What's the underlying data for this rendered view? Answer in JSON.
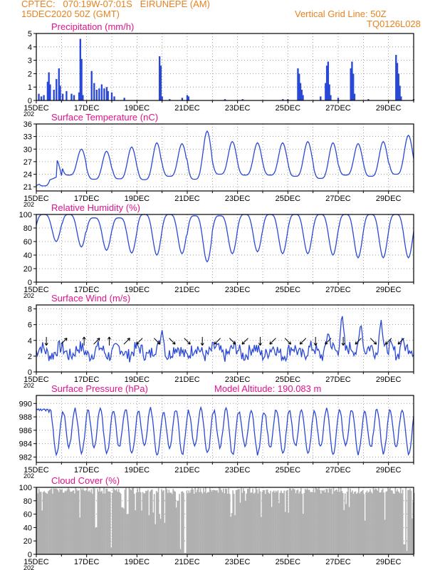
{
  "header": {
    "line1_left": "CPTEC:   070:19W-07:01S   EIRUNEPE (AM)",
    "line2_left": "15DEC2020 50Z (GMT)",
    "line1_right": "Vertical Grid Line: 50Z",
    "line2_right": "TQ0126L028",
    "text_color": "#e8821e"
  },
  "colors": {
    "title": "#e0138c",
    "series": "#2a48d6",
    "cloud": "#b0b0b0",
    "grid": "#888888",
    "frame": "#000000"
  },
  "x_axis": {
    "range_days": [
      0,
      15
    ],
    "tick_days": [
      0,
      2,
      4,
      6,
      8,
      10,
      12,
      14
    ],
    "tick_labels": [
      "15DEC",
      "17DEC",
      "19DEC",
      "21DEC",
      "23DEC",
      "25DEC",
      "27DEC",
      "29DEC"
    ],
    "year_stub": "202"
  },
  "chart_data": [
    {
      "type": "bar",
      "title": "Precipitation  (mm/h)",
      "ylim": [
        0,
        5
      ],
      "yticks": [
        0,
        1,
        2,
        3,
        4,
        5
      ],
      "events": [
        {
          "t": 0.1,
          "v": 0.5
        },
        {
          "t": 0.2,
          "v": 0.3
        },
        {
          "t": 0.3,
          "v": 0.4
        },
        {
          "t": 0.45,
          "v": 1.4
        },
        {
          "t": 0.5,
          "v": 2.1
        },
        {
          "t": 0.55,
          "v": 1.2
        },
        {
          "t": 0.7,
          "v": 0.8
        },
        {
          "t": 0.8,
          "v": 1.6
        },
        {
          "t": 0.9,
          "v": 2.4
        },
        {
          "t": 0.95,
          "v": 1.1
        },
        {
          "t": 1.05,
          "v": 0.5
        },
        {
          "t": 1.2,
          "v": 0.7
        },
        {
          "t": 1.4,
          "v": 0.5
        },
        {
          "t": 1.5,
          "v": 0.4
        },
        {
          "t": 1.7,
          "v": 0.6
        },
        {
          "t": 1.75,
          "v": 4.6
        },
        {
          "t": 1.8,
          "v": 3.1
        },
        {
          "t": 1.85,
          "v": 0.4
        },
        {
          "t": 2.2,
          "v": 2.2
        },
        {
          "t": 2.3,
          "v": 1.3
        },
        {
          "t": 2.4,
          "v": 0.8
        },
        {
          "t": 2.5,
          "v": 0.9
        },
        {
          "t": 2.6,
          "v": 1.2
        },
        {
          "t": 2.7,
          "v": 0.9
        },
        {
          "t": 2.8,
          "v": 1.0
        },
        {
          "t": 2.85,
          "v": 0.7
        },
        {
          "t": 3.0,
          "v": 0.6
        },
        {
          "t": 3.1,
          "v": 0.3
        },
        {
          "t": 3.5,
          "v": 0.2
        },
        {
          "t": 4.9,
          "v": 3.3
        },
        {
          "t": 4.95,
          "v": 2.6
        },
        {
          "t": 5.0,
          "v": 0.3
        },
        {
          "t": 5.3,
          "v": 0.1
        },
        {
          "t": 5.8,
          "v": 0.2
        },
        {
          "t": 6.0,
          "v": 0.4
        },
        {
          "t": 6.05,
          "v": 0.3
        },
        {
          "t": 7.5,
          "v": 0.1
        },
        {
          "t": 8.2,
          "v": 0.1
        },
        {
          "t": 9.8,
          "v": 0.1
        },
        {
          "t": 10.0,
          "v": 0.1
        },
        {
          "t": 10.4,
          "v": 2.4
        },
        {
          "t": 10.45,
          "v": 2.0
        },
        {
          "t": 10.5,
          "v": 1.3
        },
        {
          "t": 10.55,
          "v": 0.8
        },
        {
          "t": 10.6,
          "v": 0.4
        },
        {
          "t": 11.3,
          "v": 0.3
        },
        {
          "t": 11.5,
          "v": 1.3
        },
        {
          "t": 11.55,
          "v": 2.6
        },
        {
          "t": 11.6,
          "v": 2.9
        },
        {
          "t": 11.65,
          "v": 1.2
        },
        {
          "t": 11.7,
          "v": 0.4
        },
        {
          "t": 12.0,
          "v": 0.2
        },
        {
          "t": 12.5,
          "v": 2.4
        },
        {
          "t": 12.55,
          "v": 2.9
        },
        {
          "t": 12.6,
          "v": 2.0
        },
        {
          "t": 12.65,
          "v": 0.5
        },
        {
          "t": 13.2,
          "v": 0.1
        },
        {
          "t": 14.3,
          "v": 3.4
        },
        {
          "t": 14.35,
          "v": 2.8
        },
        {
          "t": 14.4,
          "v": 2.0
        },
        {
          "t": 14.45,
          "v": 1.1
        },
        {
          "t": 14.5,
          "v": 0.3
        },
        {
          "t": 15.0,
          "v": 0.1
        }
      ]
    },
    {
      "type": "line",
      "title": "Surface Temperature (nC)",
      "ylim": [
        20,
        36
      ],
      "yticks": [
        21,
        24,
        27,
        30,
        33,
        36
      ],
      "model": {
        "shape": "diurnal",
        "peak_hour": 19,
        "sharp": 2,
        "days": [
          {
            "min": 21.2,
            "max": 27.5
          },
          {
            "min": 23.8,
            "max": 30.0
          },
          {
            "min": 22.8,
            "max": 29.5
          },
          {
            "min": 22.9,
            "max": 30.5
          },
          {
            "min": 22.7,
            "max": 31.5
          },
          {
            "min": 23.5,
            "max": 31.3
          },
          {
            "min": 22.8,
            "max": 34.3
          },
          {
            "min": 24.0,
            "max": 31.8
          },
          {
            "min": 23.8,
            "max": 31.5
          },
          {
            "min": 23.8,
            "max": 31.5
          },
          {
            "min": 23.5,
            "max": 31.8
          },
          {
            "min": 23.0,
            "max": 31.5
          },
          {
            "min": 23.8,
            "max": 31.3
          },
          {
            "min": 23.5,
            "max": 31.8
          },
          {
            "min": 24.0,
            "max": 33.3
          }
        ],
        "start": 21.3,
        "end_min": 24.0
      }
    },
    {
      "type": "line",
      "title": "Relative Humidity  (%)",
      "ylim": [
        0,
        100
      ],
      "yticks": [
        0,
        20,
        40,
        60,
        80,
        100
      ],
      "model": {
        "shape": "diurnal_inverse",
        "peak_hour": 19,
        "sharp": 2,
        "days": [
          {
            "min": 60,
            "max": 100
          },
          {
            "min": 52,
            "max": 100
          },
          {
            "min": 47,
            "max": 95
          },
          {
            "min": 43,
            "max": 95
          },
          {
            "min": 40,
            "max": 100
          },
          {
            "min": 42,
            "max": 100
          },
          {
            "min": 30,
            "max": 98
          },
          {
            "min": 42,
            "max": 98
          },
          {
            "min": 45,
            "max": 100
          },
          {
            "min": 42,
            "max": 100
          },
          {
            "min": 42,
            "max": 100
          },
          {
            "min": 40,
            "max": 100
          },
          {
            "min": 36,
            "max": 100
          },
          {
            "min": 36,
            "max": 100
          },
          {
            "min": 36,
            "max": 100
          }
        ]
      }
    },
    {
      "type": "line",
      "title": "Surface Wind  (m/s)",
      "ylim": [
        0,
        8.5
      ],
      "yticks": [
        0,
        2,
        4,
        6,
        8
      ],
      "has_wind_arrows": true,
      "model": {
        "shape": "noisy",
        "base": 2.6,
        "amp": 0.9,
        "seed": 7,
        "spikes": [
          {
            "t": 5.0,
            "v": 5.3
          },
          {
            "t": 11.6,
            "v": 5.1
          },
          {
            "t": 12.15,
            "v": 7.6
          },
          {
            "t": 12.9,
            "v": 6.4
          },
          {
            "t": 13.7,
            "v": 6.9
          },
          {
            "t": 14.55,
            "v": 4.4
          }
        ]
      },
      "arrows": [
        {
          "t": 0.4,
          "dir": "S"
        },
        {
          "t": 1.1,
          "dir": "NE"
        },
        {
          "t": 1.9,
          "dir": "N"
        },
        {
          "t": 2.4,
          "dir": "NE"
        },
        {
          "t": 2.9,
          "dir": "N"
        },
        {
          "t": 3.6,
          "dir": "NE"
        },
        {
          "t": 4.1,
          "dir": "SW"
        },
        {
          "t": 4.8,
          "dir": "SE"
        },
        {
          "t": 5.4,
          "dir": "SE"
        },
        {
          "t": 6.0,
          "dir": "SE"
        },
        {
          "t": 6.6,
          "dir": "S"
        },
        {
          "t": 7.2,
          "dir": "SW"
        },
        {
          "t": 7.8,
          "dir": "SE"
        },
        {
          "t": 8.3,
          "dir": "SW"
        },
        {
          "t": 8.9,
          "dir": "S"
        },
        {
          "t": 9.4,
          "dir": "SW"
        },
        {
          "t": 10.0,
          "dir": "SE"
        },
        {
          "t": 10.6,
          "dir": "SW"
        },
        {
          "t": 11.1,
          "dir": "S"
        },
        {
          "t": 11.6,
          "dir": "SW"
        },
        {
          "t": 12.2,
          "dir": "S"
        },
        {
          "t": 12.8,
          "dir": "SW"
        },
        {
          "t": 13.4,
          "dir": "SE"
        },
        {
          "t": 14.0,
          "dir": "SW"
        },
        {
          "t": 14.5,
          "dir": "SW"
        }
      ]
    },
    {
      "type": "line",
      "title": "Surface Pressure (hPa)",
      "annotation": "Model Altitude: 190.083  m",
      "ylim": [
        981.2,
        991.2
      ],
      "yticks": [
        982,
        984,
        986,
        988,
        990
      ],
      "model": {
        "shape": "semidiurnal",
        "mean": 986.0,
        "amp": 3.0,
        "seed": 3
      }
    },
    {
      "type": "area",
      "title": "Cloud Cover (%)",
      "ylim": [
        0,
        100
      ],
      "yticks": [
        0,
        20,
        40,
        60,
        80,
        100
      ],
      "model": {
        "shape": "cloud",
        "base": 95,
        "seed": 11,
        "dips": [
          {
            "t": 1.7,
            "v": 55
          },
          {
            "t": 2.35,
            "v": 40
          },
          {
            "t": 2.95,
            "v": 10
          },
          {
            "t": 3.4,
            "v": 70
          },
          {
            "t": 3.6,
            "v": 60
          },
          {
            "t": 4.7,
            "v": 45
          },
          {
            "t": 5.6,
            "v": 80
          },
          {
            "t": 5.7,
            "v": 8
          },
          {
            "t": 5.9,
            "v": 2
          },
          {
            "t": 8.3,
            "v": 80
          },
          {
            "t": 12.3,
            "v": 75
          },
          {
            "t": 14.6,
            "v": 15
          },
          {
            "t": 14.7,
            "v": 5
          }
        ]
      }
    }
  ]
}
